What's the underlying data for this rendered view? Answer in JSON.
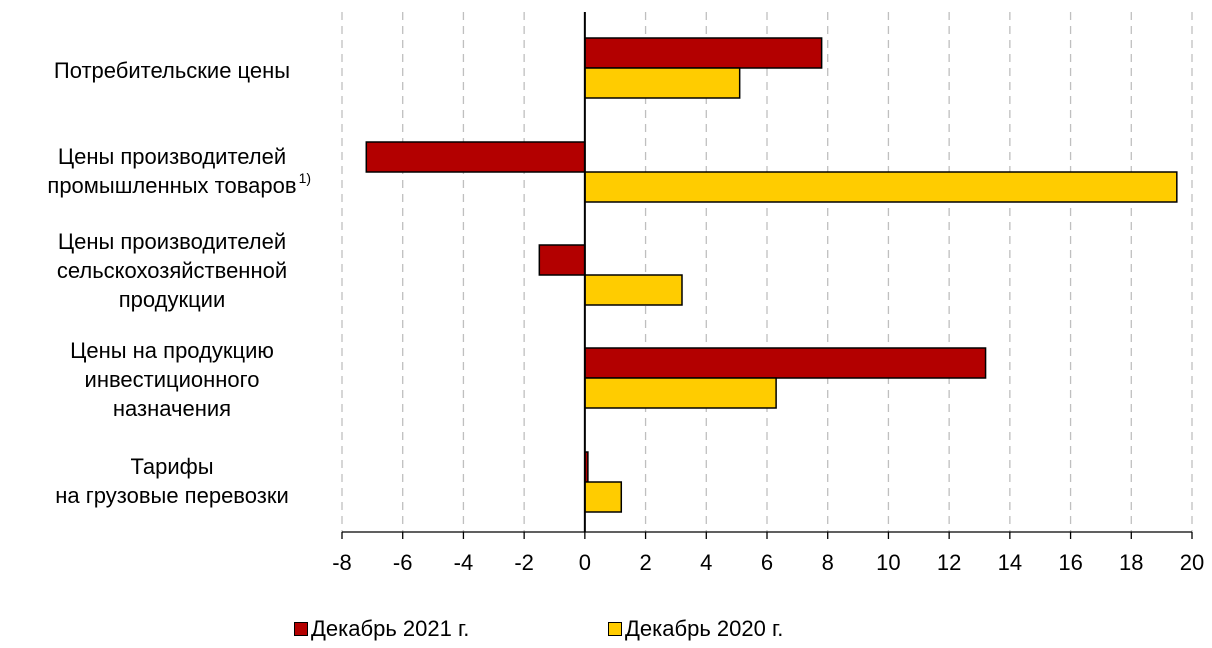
{
  "chart_data": {
    "type": "bar",
    "orientation": "horizontal",
    "categories": [
      {
        "lines": [
          "Потребительские цены"
        ],
        "footnote": ""
      },
      {
        "lines": [
          "Цены производителей",
          "промышленных товаров"
        ],
        "footnote": "1)"
      },
      {
        "lines": [
          "Цены производителей",
          "сельскохозяйственной",
          "продукции"
        ],
        "footnote": ""
      },
      {
        "lines": [
          "Цены на продукцию",
          "инвестиционного",
          "назначения"
        ],
        "footnote": ""
      },
      {
        "lines": [
          "Тарифы",
          "на грузовые перевозки"
        ],
        "footnote": ""
      }
    ],
    "series": [
      {
        "name": "Декабрь 2021 г.",
        "color": "#B30000",
        "values": [
          7.8,
          -7.2,
          -1.5,
          13.2,
          0.1
        ]
      },
      {
        "name": "Декабрь 2020 г.",
        "color": "#FFCC00",
        "values": [
          5.1,
          19.5,
          3.2,
          6.3,
          1.2
        ]
      }
    ],
    "xlim": [
      -8,
      20
    ],
    "xticks": [
      "-8",
      "-6",
      "-4",
      "-2",
      "0",
      "2",
      "4",
      "6",
      "8",
      "10",
      "12",
      "14",
      "16",
      "18",
      "20"
    ],
    "grid": true,
    "legend_position": "bottom"
  }
}
